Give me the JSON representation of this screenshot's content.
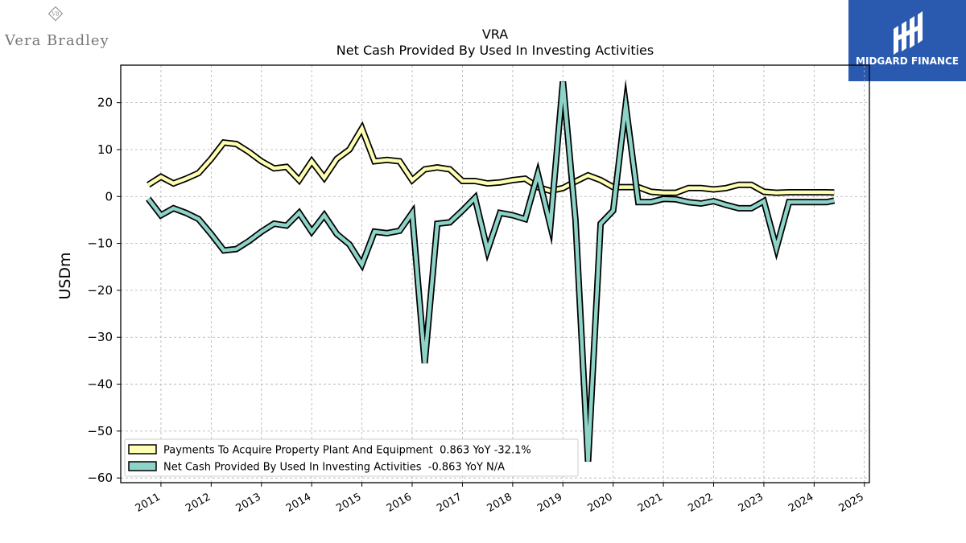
{
  "brand_left": {
    "icon": "vb-monogram-icon",
    "name": "Vera Bradley",
    "monogram": "VB"
  },
  "brand_right": {
    "icon": "midgard-logo-icon",
    "name": "MIDGARD FINANCE"
  },
  "chart_data": {
    "type": "line",
    "title": "VRA",
    "subtitle": "Net Cash Provided By Used In Investing Activities",
    "ylabel": "USDm",
    "xlabel": "",
    "ylim": [
      -61,
      28
    ],
    "xlim": [
      2010.2,
      2025.1
    ],
    "yticks": [
      20,
      10,
      0,
      -10,
      -20,
      -30,
      -40,
      -50,
      -60
    ],
    "xticks": [
      "2011",
      "2012",
      "2013",
      "2014",
      "2015",
      "2016",
      "2017",
      "2018",
      "2019",
      "2020",
      "2021",
      "2022",
      "2023",
      "2024",
      "2025"
    ],
    "grid": true,
    "legend_position": "lower-left",
    "series": [
      {
        "name": "Payments To Acquire Property Plant And Equipment  0.863 YoY -32.1%",
        "color": "#ffffb3",
        "x": [
          2010.75,
          2011.0,
          2011.25,
          2011.5,
          2011.75,
          2012.0,
          2012.25,
          2012.5,
          2012.75,
          2013.0,
          2013.25,
          2013.5,
          2013.75,
          2014.0,
          2014.25,
          2014.5,
          2014.75,
          2015.0,
          2015.25,
          2015.5,
          2015.75,
          2016.0,
          2016.25,
          2016.5,
          2016.75,
          2017.0,
          2017.25,
          2017.5,
          2017.75,
          2018.0,
          2018.25,
          2018.5,
          2018.75,
          2019.0,
          2019.25,
          2019.5,
          2019.75,
          2020.0,
          2020.25,
          2020.5,
          2020.75,
          2021.0,
          2021.25,
          2021.5,
          2021.75,
          2022.0,
          2022.25,
          2022.5,
          2022.75,
          2023.0,
          2023.25,
          2023.5,
          2023.75,
          2024.0,
          2024.25,
          2024.4
        ],
        "values": [
          2.5,
          4.2,
          2.8,
          3.8,
          5.0,
          8.0,
          11.5,
          11.2,
          9.5,
          7.5,
          6.0,
          6.3,
          3.5,
          7.5,
          4.0,
          8.0,
          10.0,
          14.5,
          7.5,
          7.8,
          7.5,
          3.5,
          5.8,
          6.2,
          5.8,
          3.3,
          3.3,
          2.8,
          3.0,
          3.5,
          3.8,
          2.0,
          1.2,
          1.8,
          3.2,
          4.5,
          3.5,
          2.0,
          2.0,
          2.0,
          1.0,
          0.8,
          0.8,
          1.8,
          1.8,
          1.5,
          1.8,
          2.5,
          2.5,
          1.0,
          0.8,
          0.9,
          0.9,
          0.9,
          0.9,
          0.86
        ]
      },
      {
        "name": "Net Cash Provided By Used In Investing Activities  -0.863 YoY N/A",
        "color": "#8dd3c7",
        "x": [
          2010.75,
          2011.0,
          2011.25,
          2011.5,
          2011.75,
          2012.0,
          2012.25,
          2012.5,
          2012.75,
          2013.0,
          2013.25,
          2013.5,
          2013.75,
          2014.0,
          2014.25,
          2014.5,
          2014.75,
          2015.0,
          2015.25,
          2015.5,
          2015.75,
          2016.0,
          2016.25,
          2016.5,
          2016.75,
          2017.0,
          2017.25,
          2017.5,
          2017.75,
          2018.0,
          2018.25,
          2018.5,
          2018.75,
          2019.0,
          2019.25,
          2019.5,
          2019.75,
          2020.0,
          2020.25,
          2020.5,
          2020.75,
          2021.0,
          2021.25,
          2021.5,
          2021.75,
          2022.0,
          2022.25,
          2022.5,
          2022.75,
          2023.0,
          2023.25,
          2023.5,
          2023.75,
          2024.0,
          2024.25,
          2024.4
        ],
        "values": [
          -0.5,
          -4.0,
          -2.5,
          -3.5,
          -4.8,
          -8.0,
          -11.5,
          -11.2,
          -9.5,
          -7.5,
          -5.8,
          -6.2,
          -3.5,
          -7.5,
          -4.0,
          -8.0,
          -10.2,
          -14.5,
          -7.5,
          -7.8,
          -7.3,
          -3.5,
          -35.5,
          -5.8,
          -5.5,
          -3.0,
          -0.3,
          -11.5,
          -3.5,
          -4.0,
          -4.8,
          4.8,
          -6.2,
          24.5,
          -5.0,
          -56.5,
          -5.8,
          -3.0,
          19.5,
          -1.2,
          -1.2,
          -0.5,
          -0.6,
          -1.2,
          -1.5,
          -1.0,
          -1.8,
          -2.5,
          -2.5,
          -1.0,
          -11.0,
          -1.2,
          -1.2,
          -1.2,
          -1.2,
          -0.86
        ]
      }
    ]
  }
}
